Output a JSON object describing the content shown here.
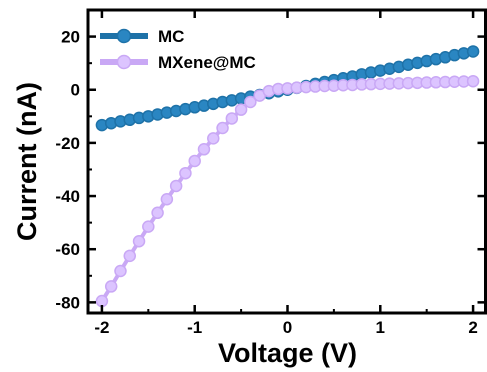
{
  "chart_data": {
    "type": "line",
    "xlabel": "Voltage (V)",
    "ylabel": "Current (nA)",
    "xlim": [
      -2.15,
      2.15
    ],
    "ylim": [
      -84,
      30
    ],
    "xticks": [
      -2,
      -1,
      0,
      1,
      2
    ],
    "yticks": [
      20,
      0,
      -20,
      -40,
      -60,
      -80
    ],
    "xtick_labels": [
      "-2",
      "-1",
      "0",
      "1",
      "2"
    ],
    "ytick_labels": [
      "20",
      "0",
      "-20",
      "-40",
      "-60",
      "-80"
    ],
    "legend_position": "top-left",
    "series": [
      {
        "name": "MC",
        "color": "#1e72a8",
        "marker_color": "#2a86c2",
        "x": [
          -2.0,
          -1.9,
          -1.8,
          -1.7,
          -1.6,
          -1.5,
          -1.4,
          -1.3,
          -1.2,
          -1.1,
          -1.0,
          -0.9,
          -0.8,
          -0.7,
          -0.6,
          -0.5,
          -0.4,
          -0.3,
          -0.2,
          -0.1,
          0.0,
          0.1,
          0.2,
          0.3,
          0.4,
          0.5,
          0.6,
          0.7,
          0.8,
          0.9,
          1.0,
          1.1,
          1.2,
          1.3,
          1.4,
          1.5,
          1.6,
          1.7,
          1.8,
          1.9,
          2.0
        ],
        "y": [
          -13.3,
          -12.6,
          -11.9,
          -11.3,
          -10.6,
          -10.0,
          -9.3,
          -8.6,
          -8.0,
          -7.3,
          -6.6,
          -6.0,
          -5.3,
          -4.6,
          -4.0,
          -3.3,
          -2.6,
          -2.0,
          -1.3,
          -0.6,
          0.0,
          0.7,
          1.4,
          2.2,
          2.9,
          3.6,
          4.3,
          5.0,
          5.8,
          6.5,
          7.2,
          7.9,
          8.6,
          9.4,
          10.1,
          10.8,
          11.5,
          12.2,
          13.0,
          13.7,
          14.4
        ]
      },
      {
        "name": "MXene@MC",
        "color": "#c9a8f5",
        "marker_color": "#dcc4ff",
        "x": [
          -2.0,
          -1.9,
          -1.8,
          -1.7,
          -1.6,
          -1.5,
          -1.4,
          -1.3,
          -1.2,
          -1.1,
          -1.0,
          -0.9,
          -0.8,
          -0.7,
          -0.6,
          -0.5,
          -0.4,
          -0.3,
          -0.2,
          -0.1,
          0.0,
          0.1,
          0.2,
          0.3,
          0.4,
          0.5,
          0.6,
          0.7,
          0.8,
          0.9,
          1.0,
          1.1,
          1.2,
          1.3,
          1.4,
          1.5,
          1.6,
          1.7,
          1.8,
          1.9,
          2.0
        ],
        "y": [
          -79.5,
          -74.0,
          -68.2,
          -62.5,
          -57.0,
          -51.5,
          -46.3,
          -41.2,
          -36.2,
          -31.4,
          -26.8,
          -22.4,
          -18.3,
          -14.4,
          -10.8,
          -7.5,
          -4.6,
          -2.2,
          -0.5,
          0.3,
          0.5,
          0.8,
          1.0,
          1.2,
          1.4,
          1.5,
          1.7,
          1.8,
          2.0,
          2.1,
          2.2,
          2.3,
          2.4,
          2.5,
          2.6,
          2.7,
          2.8,
          2.9,
          3.0,
          3.1,
          3.2
        ]
      }
    ]
  }
}
